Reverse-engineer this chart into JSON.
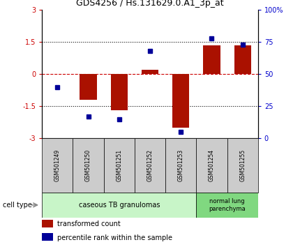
{
  "title": "GDS4256 / Hs.131629.0.A1_3p_at",
  "samples": [
    "GSM501249",
    "GSM501250",
    "GSM501251",
    "GSM501252",
    "GSM501253",
    "GSM501254",
    "GSM501255"
  ],
  "transformed_count": [
    0.0,
    -1.2,
    -1.7,
    0.2,
    -2.5,
    1.35,
    1.35
  ],
  "percentile_rank": [
    40,
    17,
    15,
    68,
    5,
    78,
    73
  ],
  "cell_types": [
    {
      "label": "caseous TB granulomas",
      "samples_range": [
        0,
        4
      ],
      "color": "#c8f5c8"
    },
    {
      "label": "normal lung\nparenchyma",
      "samples_range": [
        5,
        6
      ],
      "color": "#80d880"
    }
  ],
  "bar_color": "#aa1100",
  "dot_color": "#000099",
  "ylim_left": [
    -3,
    3
  ],
  "ylim_right": [
    0,
    100
  ],
  "yticks_left": [
    -3,
    -1.5,
    0,
    1.5,
    3
  ],
  "ytick_labels_left": [
    "-3",
    "-1.5",
    "0",
    "1.5",
    "3"
  ],
  "yticks_right": [
    0,
    25,
    50,
    75,
    100
  ],
  "ytick_labels_right": [
    "0",
    "25",
    "50",
    "75",
    "100%"
  ],
  "hlines": [
    -1.5,
    0,
    1.5
  ],
  "hline_colors": [
    "black",
    "#cc0000",
    "black"
  ],
  "hline_styles": [
    "dotted",
    "dashed",
    "dotted"
  ],
  "background_color": "#ffffff",
  "cell_type_label": "cell type",
  "legend": [
    {
      "color": "#aa1100",
      "label": "transformed count"
    },
    {
      "color": "#000099",
      "label": "percentile rank within the sample"
    }
  ],
  "sample_box_color": "#cccccc",
  "title_fontsize": 9,
  "tick_fontsize": 7,
  "label_fontsize": 7
}
